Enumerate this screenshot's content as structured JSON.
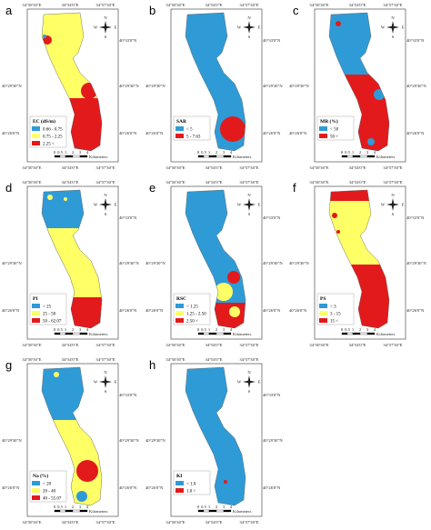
{
  "coords": {
    "lon": [
      "34°50'30\"E",
      "34°54'0\"E",
      "34°57'30\"E"
    ],
    "lat": [
      "40°33'0\"N",
      "40°29'30\"N",
      "40°26'0\"N"
    ]
  },
  "scale": {
    "ticks": [
      "0",
      "0.5",
      "1",
      "2",
      "3",
      "4"
    ],
    "unit": "Kilometers"
  },
  "compass": [
    "N",
    "S",
    "W",
    "E"
  ],
  "panels": [
    {
      "letter": "a",
      "legend_title": "EC (dS/m)",
      "items": [
        {
          "label": "0.66 - 0.75",
          "color": "#2e9bd6"
        },
        {
          "label": "0.75 - 2.25",
          "color": "#ffff66"
        },
        {
          "label": "2.25 <",
          "color": "#e31a1c"
        }
      ]
    },
    {
      "letter": "b",
      "legend_title": "SAR",
      "items": [
        {
          "label": "< 5",
          "color": "#2e9bd6"
        },
        {
          "label": "5 - 7.63",
          "color": "#e31a1c"
        }
      ]
    },
    {
      "letter": "c",
      "legend_title": "MR (%)",
      "items": [
        {
          "label": "< 50",
          "color": "#2e9bd6"
        },
        {
          "label": "50 <",
          "color": "#e31a1c"
        }
      ]
    },
    {
      "letter": "d",
      "legend_title": "PI",
      "items": [
        {
          "label": "< 25",
          "color": "#2e9bd6"
        },
        {
          "label": "25 - 50",
          "color": "#ffff66"
        },
        {
          "label": "50 - 62.07",
          "color": "#e31a1c"
        }
      ]
    },
    {
      "letter": "e",
      "legend_title": "RSC",
      "items": [
        {
          "label": "< 1.25",
          "color": "#2e9bd6"
        },
        {
          "label": "1.25 - 2.50",
          "color": "#ffff66"
        },
        {
          "label": "2.50 <",
          "color": "#e31a1c"
        }
      ]
    },
    {
      "letter": "f",
      "legend_title": "PS",
      "items": [
        {
          "label": "< 3",
          "color": "#2e9bd6"
        },
        {
          "label": "3 - 15",
          "color": "#ffff66"
        },
        {
          "label": "15 <",
          "color": "#e31a1c"
        }
      ]
    },
    {
      "letter": "g",
      "legend_title": "Na (%)",
      "items": [
        {
          "label": "< 20",
          "color": "#2e9bd6"
        },
        {
          "label": "20 - 40",
          "color": "#ffff66"
        },
        {
          "label": "40 - 55.07",
          "color": "#e31a1c"
        }
      ]
    },
    {
      "letter": "h",
      "legend_title": "KI",
      "items": [
        {
          "label": "< 1.0",
          "color": "#2e9bd6"
        },
        {
          "label": "1.0 <",
          "color": "#e31a1c"
        }
      ]
    }
  ]
}
